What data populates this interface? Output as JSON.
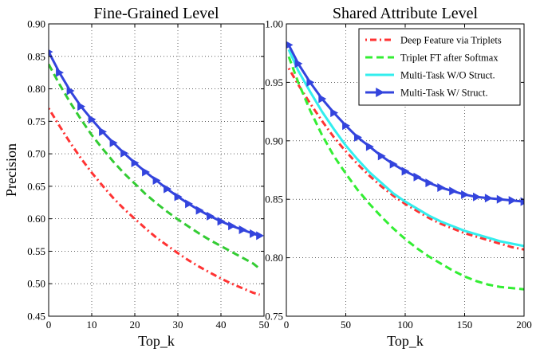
{
  "chart_data": [
    {
      "type": "line",
      "title": "Fine-Grained Level",
      "xlabel": "Top_k",
      "ylabel": "Precision",
      "xlim": [
        0,
        50
      ],
      "ylim": [
        0.45,
        0.9
      ],
      "xticks": [
        0,
        10,
        20,
        30,
        40,
        50
      ],
      "xtick_labels": [
        "0",
        "10",
        "20",
        "30",
        "40",
        "50"
      ],
      "yticks": [
        0.45,
        0.5,
        0.55,
        0.6,
        0.65,
        0.7,
        0.75,
        0.8,
        0.85,
        0.9
      ],
      "ytick_labels": [
        "0.45",
        "0.50",
        "0.55",
        "0.60",
        "0.65",
        "0.70",
        "0.75",
        "0.80",
        "0.85",
        "0.90"
      ],
      "grid": true,
      "x": [
        0,
        2.5,
        5,
        7.5,
        10,
        12.5,
        15,
        17.5,
        20,
        22.5,
        25,
        27.5,
        30,
        32.5,
        35,
        37.5,
        40,
        42.5,
        45,
        47.5,
        49
      ],
      "series": [
        {
          "key": "deep_feature",
          "color": "#ff3333",
          "style": "dashdot",
          "values": [
            0.77,
            0.743,
            0.717,
            0.693,
            0.671,
            0.651,
            0.632,
            0.615,
            0.6,
            0.585,
            0.571,
            0.559,
            0.547,
            0.536,
            0.526,
            0.517,
            0.508,
            0.5,
            0.493,
            0.486,
            0.483
          ]
        },
        {
          "key": "triplet_ft",
          "color": "#33cc33",
          "style": "dashed",
          "values": [
            0.838,
            0.807,
            0.779,
            0.753,
            0.729,
            0.708,
            0.688,
            0.67,
            0.654,
            0.638,
            0.624,
            0.611,
            0.599,
            0.588,
            0.577,
            0.567,
            0.558,
            0.549,
            0.54,
            0.531,
            0.523
          ]
        },
        {
          "key": "multitask_w",
          "color": "#3344dd",
          "style": "solid-marker",
          "values": [
            0.857,
            0.825,
            0.797,
            0.773,
            0.753,
            0.734,
            0.717,
            0.701,
            0.686,
            0.672,
            0.659,
            0.646,
            0.634,
            0.623,
            0.613,
            0.604,
            0.596,
            0.589,
            0.583,
            0.577,
            0.574
          ]
        }
      ]
    },
    {
      "type": "line",
      "title": "Shared Attribute Level",
      "xlabel": "Top_k",
      "ylabel": "",
      "xlim": [
        0,
        200
      ],
      "ylim": [
        0.75,
        1.0
      ],
      "xticks": [
        0,
        50,
        100,
        150,
        200
      ],
      "xtick_labels": [
        "0",
        "50",
        "100",
        "150",
        "200"
      ],
      "yticks": [
        0.75,
        0.8,
        0.85,
        0.9,
        0.95,
        1.0
      ],
      "ytick_labels": [
        "0.75",
        "0.80",
        "0.85",
        "0.90",
        "0.95",
        "1.00"
      ],
      "grid": true,
      "legend_position": "top-right",
      "x": [
        2,
        10,
        20,
        30,
        40,
        50,
        60,
        70,
        80,
        90,
        100,
        110,
        120,
        130,
        140,
        150,
        160,
        170,
        180,
        190,
        200
      ],
      "series": [
        {
          "key": "deep_feature",
          "name": "Deep Feature via Triplets",
          "color": "#ff3333",
          "style": "dashdot",
          "values": [
            0.962,
            0.948,
            0.932,
            0.917,
            0.903,
            0.891,
            0.88,
            0.87,
            0.861,
            0.853,
            0.846,
            0.84,
            0.834,
            0.829,
            0.825,
            0.821,
            0.818,
            0.815,
            0.812,
            0.809,
            0.807
          ]
        },
        {
          "key": "triplet_ft",
          "name": "Triplet FT after Softmax",
          "color": "#33ee33",
          "style": "dashed",
          "values": [
            0.972,
            0.95,
            0.926,
            0.905,
            0.887,
            0.872,
            0.858,
            0.846,
            0.835,
            0.825,
            0.816,
            0.808,
            0.801,
            0.795,
            0.789,
            0.784,
            0.78,
            0.777,
            0.775,
            0.774,
            0.773
          ]
        },
        {
          "key": "multitask_wo",
          "name": "Multi-Task W/O Struct.",
          "color": "#33eeee",
          "style": "solid",
          "values": [
            0.978,
            0.96,
            0.942,
            0.925,
            0.91,
            0.896,
            0.884,
            0.873,
            0.864,
            0.855,
            0.848,
            0.842,
            0.836,
            0.831,
            0.827,
            0.823,
            0.82,
            0.817,
            0.814,
            0.812,
            0.81
          ]
        },
        {
          "key": "multitask_w",
          "name": "Multi-Task W/ Struct.",
          "color": "#3344dd",
          "style": "solid-marker",
          "values": [
            0.982,
            0.966,
            0.95,
            0.936,
            0.924,
            0.913,
            0.903,
            0.895,
            0.887,
            0.88,
            0.874,
            0.869,
            0.864,
            0.86,
            0.857,
            0.854,
            0.852,
            0.851,
            0.85,
            0.849,
            0.848
          ]
        }
      ]
    }
  ]
}
